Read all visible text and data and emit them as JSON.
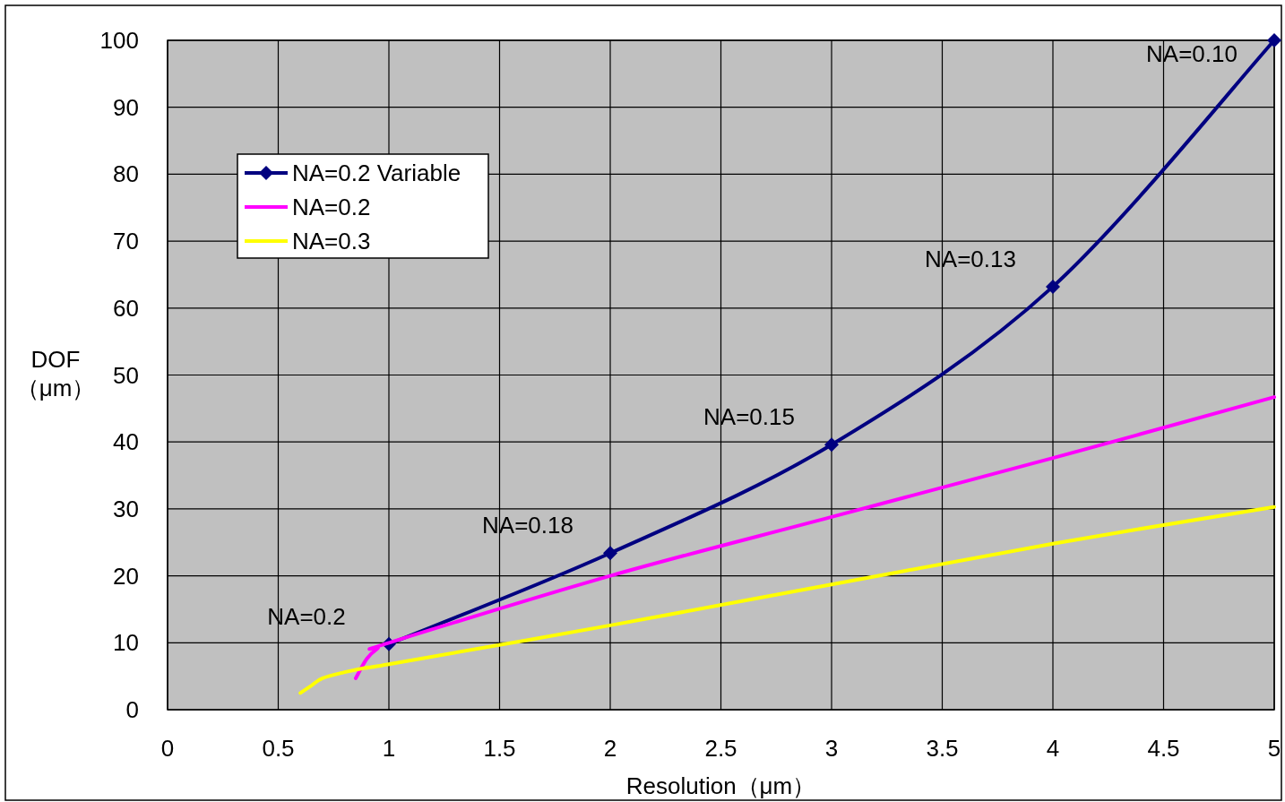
{
  "chart_data": {
    "type": "line",
    "xlabel": "Resolution（μm）",
    "ylabel": "DOF（μm）",
    "xlim": [
      0,
      5
    ],
    "ylim": [
      0,
      100
    ],
    "xticks": [
      0,
      0.5,
      1,
      1.5,
      2,
      2.5,
      3,
      3.5,
      4,
      4.5,
      5
    ],
    "yticks": [
      0,
      10,
      20,
      30,
      40,
      50,
      60,
      70,
      80,
      90,
      100
    ],
    "grid": true,
    "legend": "top left",
    "series": [
      {
        "name": "NA=0.2 Variable",
        "color": "#000080",
        "marker": "diamond",
        "x": [
          1,
          2,
          3,
          4,
          5
        ],
        "values": [
          9.8,
          23.4,
          39.6,
          63.2,
          100
        ]
      },
      {
        "name": "NA=0.2",
        "color": "#ff00ff",
        "marker": "none",
        "x": [
          0.85,
          0.9,
          0.95,
          1,
          2,
          3,
          4,
          5
        ],
        "values": [
          4.7,
          7.6,
          9.2,
          10,
          20,
          28.8,
          37.6,
          46.7
        ]
      },
      {
        "name": "NA=0.3",
        "color": "#ffff00",
        "marker": "none",
        "x": [
          0.6,
          0.65,
          0.7,
          0.8,
          0.9,
          1,
          2,
          3,
          4,
          5
        ],
        "values": [
          2.5,
          3.6,
          4.7,
          5.6,
          6.3,
          6.8,
          12.6,
          18.7,
          24.8,
          30.3
        ]
      }
    ],
    "annotations": [
      {
        "text": "NA=0.2",
        "x": 1,
        "y": 9.8
      },
      {
        "text": "NA=0.18",
        "x": 2,
        "y": 23.4
      },
      {
        "text": "NA=0.15",
        "x": 3,
        "y": 39.6
      },
      {
        "text": "NA=0.13",
        "x": 4,
        "y": 63.2
      },
      {
        "text": "NA=0.10",
        "x": 5,
        "y": 100
      }
    ]
  }
}
